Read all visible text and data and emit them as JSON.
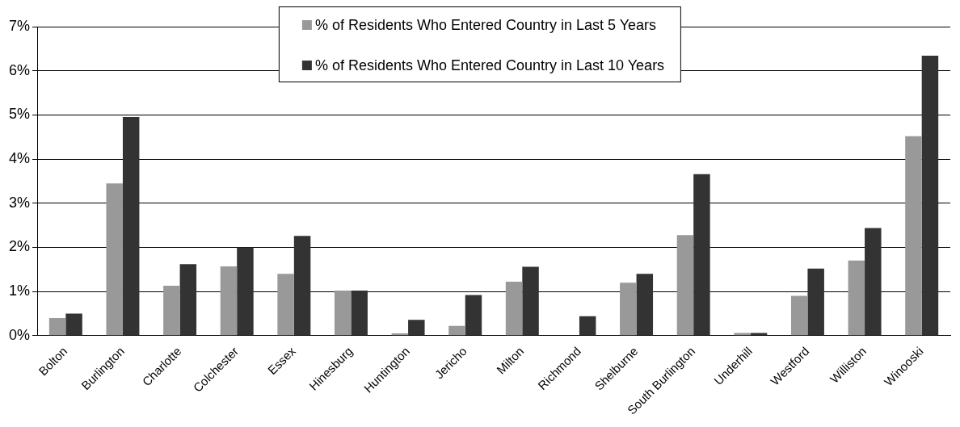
{
  "chart_data": {
    "type": "bar",
    "categories": [
      "Bolton",
      "Burlington",
      "Charlotte",
      "Colchester",
      "Essex",
      "Hinesburg",
      "Huntington",
      "Jericho",
      "Milton",
      "Richmond",
      "Shelburne",
      "South Burlington",
      "Underhill",
      "Westford",
      "Williston",
      "Winooski"
    ],
    "series": [
      {
        "name": "% of Residents Who Entered Country in Last 5 Years",
        "color": "#999999",
        "values": [
          0.4,
          3.45,
          1.13,
          1.57,
          1.4,
          1.02,
          0.05,
          0.22,
          1.22,
          null,
          1.2,
          2.28,
          0.06,
          0.9,
          1.7,
          4.52
        ]
      },
      {
        "name": "% of Residents Who Entered Country in Last 10 Years",
        "color": "#333333",
        "values": [
          0.5,
          4.95,
          1.62,
          2.0,
          2.26,
          1.02,
          0.36,
          0.92,
          1.56,
          0.44,
          1.4,
          3.66,
          0.06,
          1.52,
          2.44,
          6.34
        ]
      }
    ],
    "ylim": [
      0,
      7
    ],
    "yticks": [
      {
        "value": 0,
        "label": "0%"
      },
      {
        "value": 1,
        "label": "1%"
      },
      {
        "value": 2,
        "label": "2%"
      },
      {
        "value": 3,
        "label": "3%"
      },
      {
        "value": 4,
        "label": "4%"
      },
      {
        "value": 5,
        "label": "5%"
      },
      {
        "value": 6,
        "label": "6%"
      },
      {
        "value": 7,
        "label": "7%"
      }
    ],
    "grid": "y",
    "legend": "top"
  }
}
